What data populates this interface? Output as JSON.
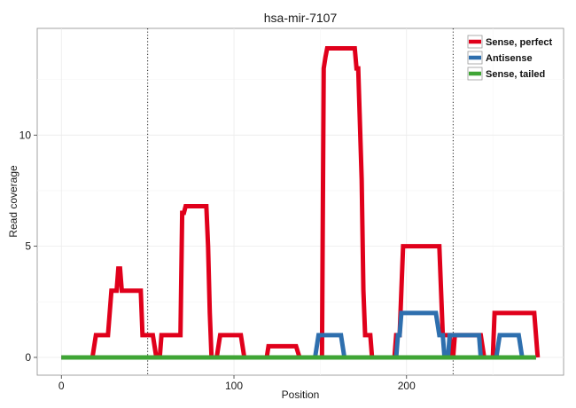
{
  "chart_data": {
    "type": "line",
    "title": "hsa-mir-7107",
    "xlabel": "Position",
    "ylabel": "Read coverage",
    "xlim": [
      -14,
      291
    ],
    "ylim": [
      -0.8,
      14.8
    ],
    "xticks": [
      0,
      100,
      200
    ],
    "yticks": [
      0,
      5,
      10
    ],
    "xtick_labels": [
      "0",
      "100",
      "200"
    ],
    "ytick_labels": [
      "0",
      "5",
      "10"
    ],
    "grid": true,
    "legend_position": "top-right",
    "vlines": [
      50,
      227
    ],
    "series": [
      {
        "name": "Sense, perfect",
        "color": "#e0001b",
        "points": [
          [
            0,
            0
          ],
          [
            18,
            0
          ],
          [
            20,
            1
          ],
          [
            27,
            1
          ],
          [
            29,
            3
          ],
          [
            32,
            3
          ],
          [
            33,
            4
          ],
          [
            34,
            4
          ],
          [
            35,
            3
          ],
          [
            46,
            3
          ],
          [
            47,
            1
          ],
          [
            53,
            1
          ],
          [
            55,
            0
          ],
          [
            57,
            0
          ],
          [
            58,
            1
          ],
          [
            69,
            1
          ],
          [
            70,
            6.5
          ],
          [
            71,
            6.5
          ],
          [
            72,
            6.8
          ],
          [
            84,
            6.8
          ],
          [
            85,
            5
          ],
          [
            86,
            2
          ],
          [
            87,
            0
          ],
          [
            90,
            0
          ],
          [
            92,
            1
          ],
          [
            104,
            1
          ],
          [
            106,
            0
          ],
          [
            119,
            0
          ],
          [
            120,
            0.5
          ],
          [
            136,
            0.5
          ],
          [
            138,
            0
          ],
          [
            151,
            0
          ],
          [
            152,
            13
          ],
          [
            153,
            13.5
          ],
          [
            154,
            13.9
          ],
          [
            170,
            13.9
          ],
          [
            171,
            13
          ],
          [
            172,
            13
          ],
          [
            174,
            8
          ],
          [
            175,
            3
          ],
          [
            176,
            1
          ],
          [
            179,
            1
          ],
          [
            180,
            0
          ],
          [
            192,
            0
          ],
          [
            193,
            0
          ],
          [
            194,
            1
          ],
          [
            196,
            1
          ],
          [
            197,
            3
          ],
          [
            198,
            5
          ],
          [
            219,
            5
          ],
          [
            220,
            3
          ],
          [
            221,
            1
          ],
          [
            225,
            1
          ],
          [
            226,
            0
          ],
          [
            227,
            0
          ],
          [
            228,
            1
          ],
          [
            243,
            1
          ],
          [
            245,
            0
          ],
          [
            250,
            0
          ],
          [
            251,
            2
          ],
          [
            274,
            2
          ],
          [
            276,
            0
          ]
        ]
      },
      {
        "name": "Antisense",
        "color": "#2e6fae",
        "points": [
          [
            0,
            0
          ],
          [
            147,
            0
          ],
          [
            149,
            1
          ],
          [
            162,
            1
          ],
          [
            164,
            0
          ],
          [
            194,
            0
          ],
          [
            195,
            1
          ],
          [
            196,
            1
          ],
          [
            197,
            2
          ],
          [
            217,
            2
          ],
          [
            219,
            1
          ],
          [
            221,
            1
          ],
          [
            222,
            0
          ],
          [
            224,
            0
          ],
          [
            225,
            1
          ],
          [
            242,
            1
          ],
          [
            243,
            0
          ],
          [
            252,
            0
          ],
          [
            254,
            1
          ],
          [
            265,
            1
          ],
          [
            267,
            0
          ],
          [
            275,
            0
          ]
        ]
      },
      {
        "name": "Sense, tailed",
        "color": "#3fa535",
        "points": [
          [
            0,
            0
          ],
          [
            275,
            0
          ]
        ]
      }
    ]
  }
}
